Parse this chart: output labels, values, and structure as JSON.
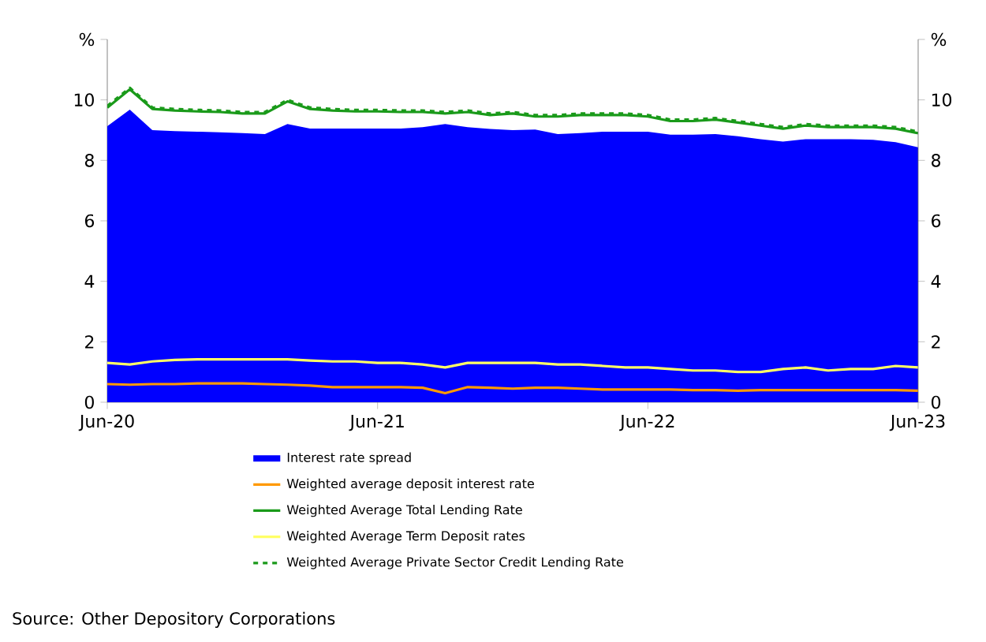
{
  "chart_data": {
    "type": "line",
    "x": [
      "2020-06",
      "2020-07",
      "2020-08",
      "2020-09",
      "2020-10",
      "2020-11",
      "2020-12",
      "2021-01",
      "2021-02",
      "2021-03",
      "2021-04",
      "2021-05",
      "2021-06",
      "2021-07",
      "2021-08",
      "2021-09",
      "2021-10",
      "2021-11",
      "2021-12",
      "2022-01",
      "2022-02",
      "2022-03",
      "2022-04",
      "2022-05",
      "2022-06",
      "2022-07",
      "2022-08",
      "2022-09",
      "2022-10",
      "2022-11",
      "2022-12",
      "2023-01",
      "2023-02",
      "2023-03",
      "2023-04",
      "2023-05",
      "2023-06"
    ],
    "series": [
      {
        "name": "Interest rate spread",
        "type": "area",
        "color": "#0000ff",
        "values": [
          9.13,
          9.68,
          9.0,
          8.97,
          8.95,
          8.93,
          8.9,
          8.87,
          9.2,
          9.05,
          9.05,
          9.05,
          9.05,
          9.05,
          9.1,
          9.2,
          9.1,
          9.04,
          9.0,
          9.02,
          8.87,
          8.9,
          8.95,
          8.95,
          8.95,
          8.85,
          8.85,
          8.87,
          8.8,
          8.7,
          8.62,
          8.7,
          8.7,
          8.7,
          8.68,
          8.6,
          8.43
        ]
      },
      {
        "name": "Weighted average deposit interest rate",
        "color": "#ff9900",
        "values": [
          0.6,
          0.58,
          0.6,
          0.6,
          0.62,
          0.62,
          0.62,
          0.6,
          0.58,
          0.55,
          0.5,
          0.5,
          0.5,
          0.5,
          0.48,
          0.3,
          0.5,
          0.48,
          0.45,
          0.48,
          0.48,
          0.45,
          0.42,
          0.42,
          0.42,
          0.42,
          0.4,
          0.4,
          0.38,
          0.4,
          0.4,
          0.4,
          0.4,
          0.4,
          0.4,
          0.4,
          0.38
        ]
      },
      {
        "name": "Weighted Average Total Lending Rate",
        "color": "#1a9a1a",
        "values": [
          9.74,
          10.35,
          9.7,
          9.65,
          9.62,
          9.6,
          9.55,
          9.55,
          9.95,
          9.7,
          9.65,
          9.62,
          9.62,
          9.6,
          9.6,
          9.55,
          9.6,
          9.5,
          9.55,
          9.45,
          9.45,
          9.5,
          9.5,
          9.5,
          9.45,
          9.3,
          9.3,
          9.35,
          9.25,
          9.15,
          9.05,
          9.15,
          9.1,
          9.1,
          9.1,
          9.05,
          8.9
        ]
      },
      {
        "name": "Weighted Average Term Deposit rates",
        "color": "#ffff66",
        "values": [
          1.3,
          1.25,
          1.35,
          1.4,
          1.42,
          1.42,
          1.42,
          1.42,
          1.42,
          1.38,
          1.35,
          1.35,
          1.3,
          1.3,
          1.25,
          1.15,
          1.3,
          1.3,
          1.3,
          1.3,
          1.25,
          1.25,
          1.2,
          1.15,
          1.15,
          1.1,
          1.05,
          1.05,
          1.0,
          1.0,
          1.1,
          1.15,
          1.05,
          1.1,
          1.1,
          1.2,
          1.15
        ]
      },
      {
        "name": "Weighted Average Private Sector Credit Lending Rate",
        "color": "#1a9a1a",
        "line_style": "dashed",
        "values": [
          9.8,
          10.4,
          9.75,
          9.7,
          9.67,
          9.65,
          9.6,
          9.6,
          10.0,
          9.75,
          9.7,
          9.67,
          9.67,
          9.65,
          9.65,
          9.6,
          9.65,
          9.55,
          9.6,
          9.5,
          9.5,
          9.55,
          9.55,
          9.55,
          9.5,
          9.35,
          9.35,
          9.4,
          9.3,
          9.2,
          9.1,
          9.2,
          9.15,
          9.15,
          9.15,
          9.1,
          8.95
        ]
      }
    ],
    "xlim": [
      "2020-06",
      "2023-06"
    ],
    "xticks": [
      {
        "value": "2020-06",
        "label": "Jun-20"
      },
      {
        "value": "2021-06",
        "label": "Jun-21"
      },
      {
        "value": "2022-06",
        "label": "Jun-22"
      },
      {
        "value": "2023-06",
        "label": "Jun-23"
      }
    ],
    "ylim": [
      0,
      12
    ],
    "yticks": [
      0,
      2,
      4,
      6,
      8,
      10,
      {
        "value": 12,
        "label": "%"
      }
    ],
    "y2lim": [
      0,
      12
    ],
    "y2ticks": [
      0,
      2,
      4,
      6,
      8,
      10,
      {
        "value": 12,
        "label": "%"
      }
    ],
    "grid": false,
    "legend": "bottom",
    "annotations": [
      "Source: Other Depository Corporations"
    ]
  }
}
